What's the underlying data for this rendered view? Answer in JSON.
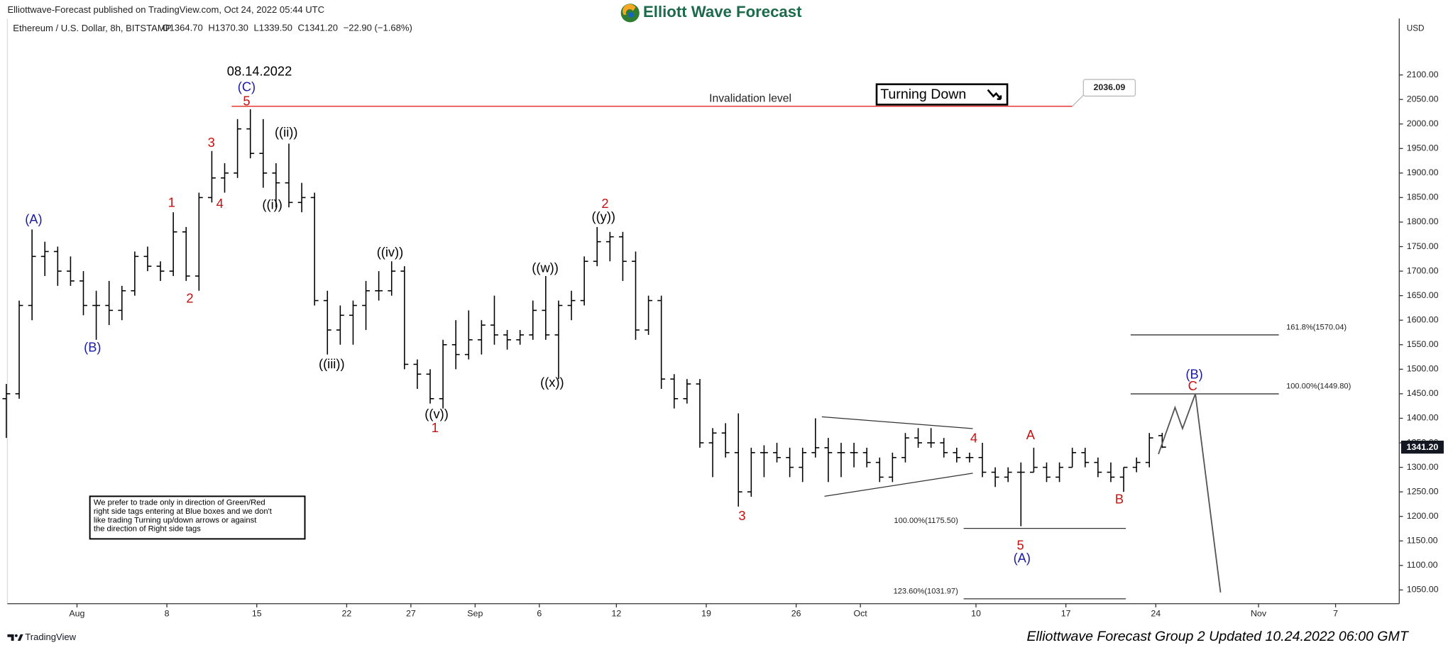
{
  "header": {
    "published": "Elliottwave-Forecast published on TradingView.com, Oct 24, 2022 05:44 UTC",
    "logo": "Elliott Wave Forecast"
  },
  "chart_data": {
    "type": "ohlc",
    "title": "Ethereum / U.S. Dollar, 8h, BITSTAMP",
    "legend_values": [
      "O1364.70",
      "H1370.30",
      "L1339.50",
      "C1341.20",
      "−22.90 (−1.68%)"
    ],
    "currency": "USD",
    "color": "#000000",
    "x": [
      "2022-07-26",
      "2022-07-27",
      "2022-07-28",
      "2022-07-29",
      "2022-07-30",
      "2022-07-31",
      "2022-08-01",
      "2022-08-02",
      "2022-08-03",
      "2022-08-04",
      "2022-08-05",
      "2022-08-06",
      "2022-08-07",
      "2022-08-08",
      "2022-08-09",
      "2022-08-10",
      "2022-08-11",
      "2022-08-12",
      "2022-08-13",
      "2022-08-14",
      "2022-08-15",
      "2022-08-16",
      "2022-08-17",
      "2022-08-18",
      "2022-08-19",
      "2022-08-20",
      "2022-08-21",
      "2022-08-22",
      "2022-08-23",
      "2022-08-24",
      "2022-08-25",
      "2022-08-26",
      "2022-08-27",
      "2022-08-28",
      "2022-08-29",
      "2022-08-30",
      "2022-08-31",
      "2022-09-01",
      "2022-09-02",
      "2022-09-03",
      "2022-09-04",
      "2022-09-05",
      "2022-09-06",
      "2022-09-07",
      "2022-09-08",
      "2022-09-09",
      "2022-09-10",
      "2022-09-11",
      "2022-09-12",
      "2022-09-13",
      "2022-09-14",
      "2022-09-15",
      "2022-09-16",
      "2022-09-17",
      "2022-09-18",
      "2022-09-19",
      "2022-09-20",
      "2022-09-21",
      "2022-09-22",
      "2022-09-23",
      "2022-09-24",
      "2022-09-25",
      "2022-09-26",
      "2022-09-27",
      "2022-09-28",
      "2022-09-29",
      "2022-09-30",
      "2022-10-01",
      "2022-10-02",
      "2022-10-03",
      "2022-10-04",
      "2022-10-05",
      "2022-10-06",
      "2022-10-07",
      "2022-10-08",
      "2022-10-09",
      "2022-10-10",
      "2022-10-11",
      "2022-10-12",
      "2022-10-13",
      "2022-10-14",
      "2022-10-15",
      "2022-10-16",
      "2022-10-17",
      "2022-10-18",
      "2022-10-19",
      "2022-10-20",
      "2022-10-21",
      "2022-10-22",
      "2022-10-23",
      "2022-10-24"
    ],
    "open": [
      1440,
      1450,
      1630,
      1730,
      1740,
      1700,
      1680,
      1630,
      1630,
      1620,
      1660,
      1730,
      1710,
      1700,
      1780,
      1690,
      1850,
      1890,
      1900,
      1990,
      1940,
      1900,
      1880,
      1840,
      1850,
      1640,
      1580,
      1610,
      1630,
      1660,
      1660,
      1700,
      1510,
      1490,
      1440,
      1550,
      1530,
      1560,
      1590,
      1570,
      1560,
      1570,
      1620,
      1570,
      1630,
      1640,
      1720,
      1760,
      1770,
      1720,
      1580,
      1640,
      1480,
      1440,
      1470,
      1350,
      1370,
      1330,
      1250,
      1330,
      1330,
      1320,
      1300,
      1330,
      1340,
      1330,
      1330,
      1330,
      1310,
      1280,
      1320,
      1360,
      1350,
      1350,
      1330,
      1320,
      1320,
      1290,
      1280,
      1290,
      1290,
      1300,
      1280,
      1300,
      1330,
      1310,
      1290,
      1280,
      1300,
      1310,
      1364.7
    ],
    "high": [
      1470,
      1640,
      1785,
      1760,
      1750,
      1730,
      1700,
      1660,
      1680,
      1670,
      1740,
      1750,
      1720,
      1820,
      1790,
      1860,
      1945,
      1920,
      2010,
      2030,
      2010,
      1920,
      1960,
      1880,
      1860,
      1660,
      1630,
      1640,
      1680,
      1700,
      1720,
      1710,
      1520,
      1500,
      1560,
      1600,
      1620,
      1600,
      1650,
      1580,
      1580,
      1640,
      1690,
      1640,
      1660,
      1730,
      1790,
      1780,
      1780,
      1740,
      1650,
      1650,
      1490,
      1480,
      1480,
      1380,
      1390,
      1410,
      1340,
      1345,
      1350,
      1340,
      1340,
      1400,
      1360,
      1350,
      1350,
      1340,
      1320,
      1330,
      1370,
      1380,
      1380,
      1360,
      1340,
      1330,
      1350,
      1300,
      1300,
      1310,
      1340,
      1310,
      1310,
      1340,
      1340,
      1320,
      1310,
      1300,
      1320,
      1370,
      1370.3
    ],
    "low": [
      1360,
      1440,
      1600,
      1690,
      1670,
      1670,
      1610,
      1560,
      1590,
      1600,
      1650,
      1700,
      1680,
      1690,
      1680,
      1660,
      1840,
      1860,
      1890,
      1930,
      1870,
      1830,
      1830,
      1820,
      1630,
      1530,
      1550,
      1550,
      1580,
      1640,
      1650,
      1500,
      1460,
      1430,
      1420,
      1500,
      1520,
      1530,
      1550,
      1540,
      1550,
      1560,
      1560,
      1480,
      1600,
      1630,
      1710,
      1720,
      1680,
      1560,
      1570,
      1460,
      1420,
      1430,
      1340,
      1280,
      1320,
      1220,
      1240,
      1280,
      1310,
      1280,
      1270,
      1320,
      1270,
      1280,
      1300,
      1300,
      1270,
      1270,
      1310,
      1340,
      1340,
      1320,
      1310,
      1310,
      1280,
      1260,
      1270,
      1180,
      1290,
      1270,
      1270,
      1300,
      1300,
      1280,
      1270,
      1250,
      1290,
      1300,
      1339.5
    ],
    "close": [
      1450,
      1630,
      1730,
      1740,
      1700,
      1680,
      1630,
      1630,
      1620,
      1660,
      1730,
      1710,
      1700,
      1780,
      1690,
      1850,
      1890,
      1900,
      1990,
      1940,
      1900,
      1880,
      1840,
      1850,
      1640,
      1580,
      1610,
      1630,
      1660,
      1660,
      1700,
      1510,
      1490,
      1440,
      1550,
      1530,
      1560,
      1590,
      1570,
      1560,
      1570,
      1620,
      1570,
      1630,
      1640,
      1720,
      1760,
      1770,
      1720,
      1580,
      1640,
      1480,
      1440,
      1470,
      1350,
      1370,
      1330,
      1250,
      1330,
      1330,
      1320,
      1300,
      1330,
      1340,
      1330,
      1330,
      1330,
      1310,
      1280,
      1320,
      1360,
      1350,
      1350,
      1330,
      1320,
      1320,
      1290,
      1280,
      1290,
      1290,
      1300,
      1280,
      1300,
      1330,
      1310,
      1290,
      1280,
      1300,
      1310,
      1360,
      1341.2
    ],
    "xlim": [
      "2022-07-26T14:00",
      "2022-11-11T23:00"
    ],
    "xticks": [
      {
        "value": "2022-08-01",
        "label": "Aug"
      },
      {
        "value": "2022-08-08",
        "label": "8"
      },
      {
        "value": "2022-08-15",
        "label": "15"
      },
      {
        "value": "2022-08-22",
        "label": "22"
      },
      {
        "value": "2022-08-27",
        "label": "27"
      },
      {
        "value": "2022-09-01",
        "label": "Sep"
      },
      {
        "value": "2022-09-06",
        "label": "6"
      },
      {
        "value": "2022-09-12",
        "label": "12"
      },
      {
        "value": "2022-09-19",
        "label": "19"
      },
      {
        "value": "2022-09-26",
        "label": "26"
      },
      {
        "value": "2022-10-01",
        "label": "Oct"
      },
      {
        "value": "2022-10-10",
        "label": "10"
      },
      {
        "value": "2022-10-17",
        "label": "17"
      },
      {
        "value": "2022-10-24",
        "label": "24"
      },
      {
        "value": "2022-11-01",
        "label": "Nov"
      },
      {
        "value": "2022-11-07",
        "label": "7"
      }
    ],
    "ylim": [
      1022,
      2215
    ],
    "yticks": [
      {
        "value": 1050,
        "label": "1050.00"
      },
      {
        "value": 1100,
        "label": "1100.00"
      },
      {
        "value": 1150,
        "label": "1150.00"
      },
      {
        "value": 1200,
        "label": "1200.00"
      },
      {
        "value": 1250,
        "label": "1250.00"
      },
      {
        "value": 1300,
        "label": "1300.00"
      },
      {
        "value": 1350,
        "label": "1350.00"
      },
      {
        "value": 1400,
        "label": "1400.00"
      },
      {
        "value": 1450,
        "label": "1450.00"
      },
      {
        "value": 1500,
        "label": "1500.00"
      },
      {
        "value": 1550,
        "label": "1550.00"
      },
      {
        "value": 1600,
        "label": "1600.00"
      },
      {
        "value": 1650,
        "label": "1650.00"
      },
      {
        "value": 1700,
        "label": "1700.00"
      },
      {
        "value": 1750,
        "label": "1750.00"
      },
      {
        "value": 1800,
        "label": "1800.00"
      },
      {
        "value": 1850,
        "label": "1850.00"
      },
      {
        "value": 1900,
        "label": "1900.00"
      },
      {
        "value": 1950,
        "label": "1950.00"
      },
      {
        "value": 2000,
        "label": "2000.00"
      },
      {
        "value": 2050,
        "label": "2050.00"
      },
      {
        "value": 2100,
        "label": "2100.00"
      }
    ],
    "last_price": {
      "value": 1341.2,
      "label": "1341.20"
    },
    "invalidation": {
      "value": 2036.09,
      "label": "2036.09",
      "text": "Invalidation level",
      "x": [
        "2022-08-13T01:00",
        "2022-10-17T12:00"
      ],
      "color": "#e53935"
    },
    "fib_levels": [
      {
        "value": 1570.04,
        "label": "161.8%(1570.04)",
        "x": [
          "2022-10-22T01:00",
          "2022-11-02T14:00"
        ],
        "label_side": "right"
      },
      {
        "value": 1449.8,
        "label": "100.00%(1449.80)",
        "x": [
          "2022-10-22T01:00",
          "2022-11-02T14:00"
        ],
        "label_side": "right"
      },
      {
        "value": 1175.5,
        "label": "100.00%(1175.50)",
        "x": [
          "2022-10-09T01:00",
          "2022-10-21T16:00"
        ],
        "label_side": "left"
      },
      {
        "value": 1031.97,
        "label": "123.60%(1031.97)",
        "x": [
          "2022-10-09T01:00",
          "2022-10-21T16:00"
        ],
        "label_side": "left"
      }
    ],
    "trendlines": [
      {
        "x": [
          "2022-09-28T00:00",
          "2022-10-09T18:00"
        ],
        "y": [
          1403,
          1379
        ]
      },
      {
        "x": [
          "2022-09-28T05:00",
          "2022-10-09T18:00"
        ],
        "y": [
          1241,
          1288
        ]
      }
    ],
    "projection": {
      "x": [
        "2022-10-24T05:00",
        "2022-10-25T12:00",
        "2022-10-26T02:00",
        "2022-10-27T02:00",
        "2022-10-29T01:00"
      ],
      "y": [
        1327,
        1422,
        1379,
        1450,
        1045
      ],
      "color": "#555555"
    },
    "annotations": [
      {
        "text": "(A)",
        "x": "2022-07-28T15:00",
        "y": 1804,
        "color": "#1a1aa6"
      },
      {
        "text": "(B)",
        "x": "2022-08-02T05:00",
        "y": 1543,
        "color": "#1a1aa6"
      },
      {
        "text": "1",
        "x": "2022-08-08T09:00",
        "y": 1838,
        "color": "#c41010"
      },
      {
        "text": "2",
        "x": "2022-08-09T19:00",
        "y": 1643,
        "color": "#c41010"
      },
      {
        "text": "3",
        "x": "2022-08-11T11:00",
        "y": 1960,
        "color": "#c41010"
      },
      {
        "text": "4",
        "x": "2022-08-12T03:00",
        "y": 1836,
        "color": "#c41010"
      },
      {
        "text": "08.14.2022",
        "x": "2022-08-15T05:00",
        "y": 2106,
        "color": "#000000"
      },
      {
        "text": "(C)",
        "x": "2022-08-14T05:00",
        "y": 2074,
        "color": "#1a1aa6"
      },
      {
        "text": "5",
        "x": "2022-08-14T05:00",
        "y": 2045,
        "color": "#c41010"
      },
      {
        "text": "((ii))",
        "x": "2022-08-17T07:00",
        "y": 1981,
        "color": "#000000"
      },
      {
        "text": "((i))",
        "x": "2022-08-16T05:00",
        "y": 1834,
        "color": "#000000"
      },
      {
        "text": "((iii))",
        "x": "2022-08-20T20:00",
        "y": 1509,
        "color": "#000000"
      },
      {
        "text": "((iv))",
        "x": "2022-08-25T09:00",
        "y": 1737,
        "color": "#000000"
      },
      {
        "text": "((v))",
        "x": "2022-08-29T00:00",
        "y": 1407,
        "color": "#000000"
      },
      {
        "text": "1",
        "x": "2022-08-28T21:00",
        "y": 1379,
        "color": "#c41010"
      },
      {
        "text": "((w))",
        "x": "2022-09-06T11:00",
        "y": 1705,
        "color": "#000000"
      },
      {
        "text": "((x))",
        "x": "2022-09-07T00:00",
        "y": 1471,
        "color": "#000000"
      },
      {
        "text": "((y))",
        "x": "2022-09-11T00:00",
        "y": 1809,
        "color": "#000000"
      },
      {
        "text": "2",
        "x": "2022-09-11T03:00",
        "y": 1836,
        "color": "#c41010"
      },
      {
        "text": "3",
        "x": "2022-09-21T19:00",
        "y": 1199,
        "color": "#c41010"
      },
      {
        "text": "4",
        "x": "2022-10-09T20:00",
        "y": 1358,
        "color": "#c41010"
      },
      {
        "text": "5",
        "x": "2022-10-13T11:00",
        "y": 1139,
        "color": "#c41010"
      },
      {
        "text": "(A)",
        "x": "2022-10-13T14:00",
        "y": 1113,
        "color": "#1a1aa6"
      },
      {
        "text": "A",
        "x": "2022-10-14T06:00",
        "y": 1364,
        "color": "#c41010"
      },
      {
        "text": "B",
        "x": "2022-10-21T04:00",
        "y": 1233,
        "color": "#c41010"
      },
      {
        "text": "C",
        "x": "2022-10-26T21:00",
        "y": 1464,
        "color": "#c41010"
      },
      {
        "text": "(B)",
        "x": "2022-10-27T00:00",
        "y": 1488,
        "color": "#1a1aa6"
      }
    ],
    "signal": "Turning Down",
    "note": [
      "We prefer to trade only in direction of Green/Red",
      "right side tags entering at Blue boxes and we don't",
      "like trading Turning up/down arrows or against",
      "the direction of Right side tags"
    ]
  },
  "footer": {
    "brand": "TradingView",
    "credit": "Elliottwave Forecast Group 2 Updated 10.24.2022 06:00 GMT"
  }
}
